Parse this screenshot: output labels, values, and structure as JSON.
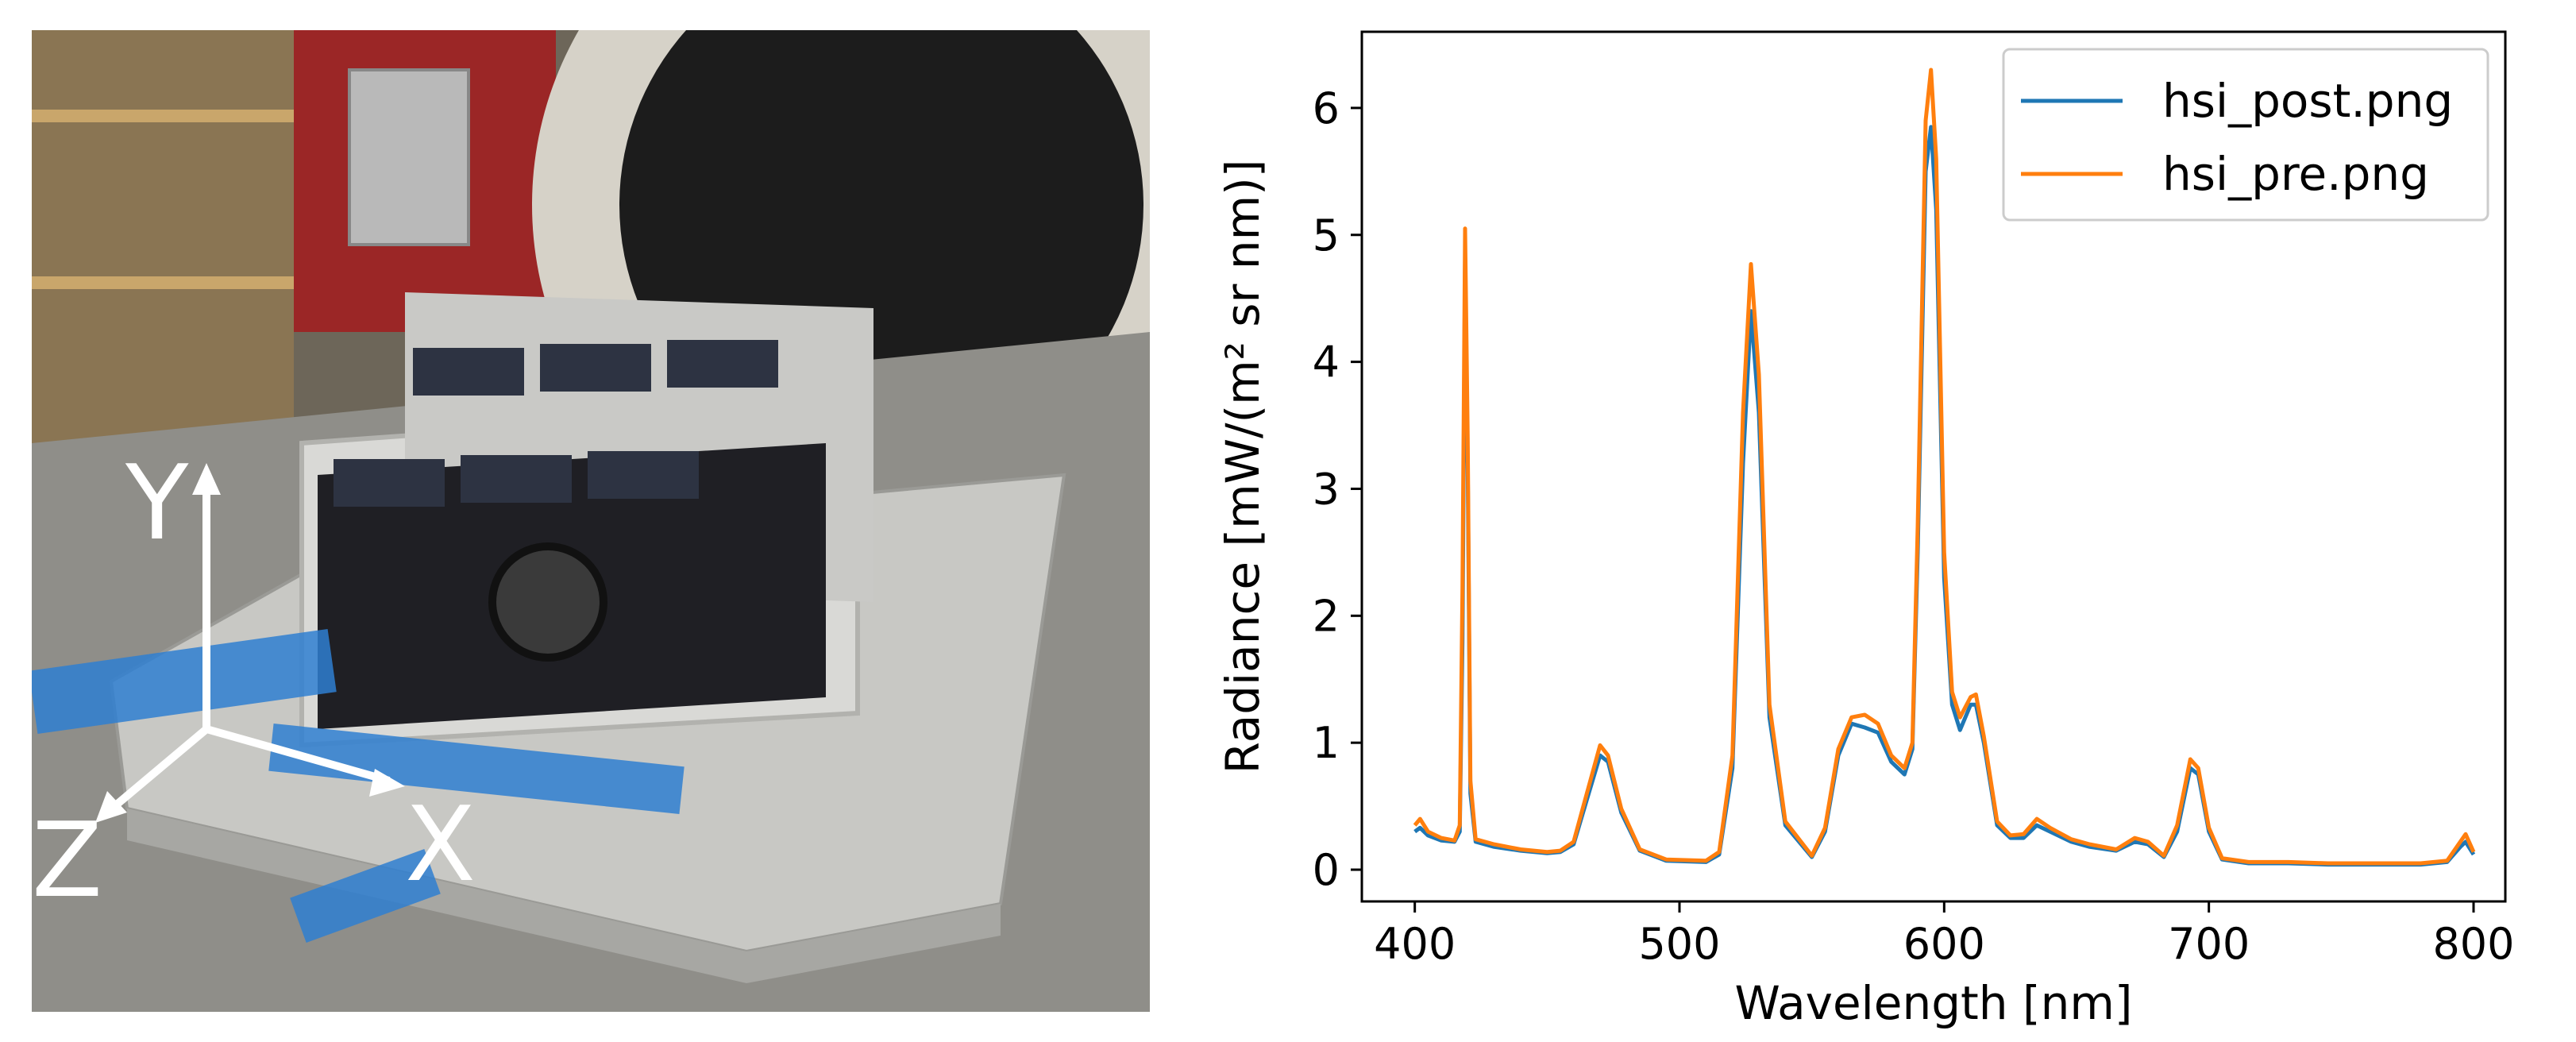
{
  "photo": {
    "description_icon": "cubesat-on-vibration-table-photo",
    "axis_labels": {
      "y": "Y",
      "z": "Z",
      "x": "X"
    }
  },
  "chart_data": {
    "type": "line",
    "title": "",
    "xlabel": "Wavelength [nm]",
    "ylabel": "Radiance [mW/(m² sr nm)]",
    "xlim": [
      380,
      812
    ],
    "ylim": [
      -0.25,
      6.6
    ],
    "xticks": [
      400,
      500,
      600,
      700,
      800
    ],
    "yticks": [
      0,
      1,
      2,
      3,
      4,
      5,
      6
    ],
    "grid": false,
    "legend_position": "top-right",
    "series": [
      {
        "name": "hsi_post.png",
        "color": "#1f77b4",
        "points": [
          [
            400,
            0.3
          ],
          [
            402,
            0.33
          ],
          [
            405,
            0.27
          ],
          [
            410,
            0.23
          ],
          [
            415,
            0.22
          ],
          [
            417,
            0.3
          ],
          [
            418,
            1.8
          ],
          [
            419,
            4.8
          ],
          [
            420,
            3.2
          ],
          [
            421,
            0.6
          ],
          [
            423,
            0.22
          ],
          [
            430,
            0.18
          ],
          [
            440,
            0.15
          ],
          [
            450,
            0.13
          ],
          [
            455,
            0.14
          ],
          [
            460,
            0.2
          ],
          [
            465,
            0.55
          ],
          [
            470,
            0.9
          ],
          [
            473,
            0.85
          ],
          [
            478,
            0.45
          ],
          [
            485,
            0.15
          ],
          [
            495,
            0.07
          ],
          [
            510,
            0.06
          ],
          [
            515,
            0.12
          ],
          [
            520,
            0.8
          ],
          [
            524,
            3.2
          ],
          [
            527,
            4.4
          ],
          [
            530,
            3.6
          ],
          [
            534,
            1.2
          ],
          [
            540,
            0.35
          ],
          [
            550,
            0.1
          ],
          [
            555,
            0.3
          ],
          [
            560,
            0.9
          ],
          [
            565,
            1.15
          ],
          [
            570,
            1.12
          ],
          [
            575,
            1.08
          ],
          [
            580,
            0.85
          ],
          [
            585,
            0.75
          ],
          [
            588,
            0.95
          ],
          [
            590,
            2.5
          ],
          [
            593,
            5.5
          ],
          [
            595,
            5.85
          ],
          [
            597,
            5.2
          ],
          [
            600,
            2.3
          ],
          [
            603,
            1.3
          ],
          [
            606,
            1.1
          ],
          [
            610,
            1.3
          ],
          [
            612,
            1.3
          ],
          [
            615,
            1.0
          ],
          [
            620,
            0.35
          ],
          [
            625,
            0.25
          ],
          [
            630,
            0.25
          ],
          [
            635,
            0.35
          ],
          [
            640,
            0.3
          ],
          [
            648,
            0.22
          ],
          [
            655,
            0.18
          ],
          [
            665,
            0.15
          ],
          [
            672,
            0.22
          ],
          [
            677,
            0.2
          ],
          [
            683,
            0.1
          ],
          [
            688,
            0.3
          ],
          [
            693,
            0.8
          ],
          [
            696,
            0.75
          ],
          [
            700,
            0.3
          ],
          [
            705,
            0.08
          ],
          [
            715,
            0.05
          ],
          [
            730,
            0.05
          ],
          [
            745,
            0.04
          ],
          [
            760,
            0.04
          ],
          [
            780,
            0.04
          ],
          [
            790,
            0.06
          ],
          [
            795,
            0.18
          ],
          [
            797,
            0.22
          ],
          [
            800,
            0.12
          ]
        ]
      },
      {
        "name": "hsi_pre.png",
        "color": "#ff7f0e",
        "points": [
          [
            400,
            0.35
          ],
          [
            402,
            0.4
          ],
          [
            405,
            0.3
          ],
          [
            410,
            0.25
          ],
          [
            415,
            0.23
          ],
          [
            417,
            0.35
          ],
          [
            418,
            2.2
          ],
          [
            419,
            5.05
          ],
          [
            420,
            3.4
          ],
          [
            421,
            0.7
          ],
          [
            423,
            0.24
          ],
          [
            430,
            0.2
          ],
          [
            440,
            0.16
          ],
          [
            450,
            0.14
          ],
          [
            455,
            0.15
          ],
          [
            460,
            0.22
          ],
          [
            465,
            0.6
          ],
          [
            470,
            0.98
          ],
          [
            473,
            0.9
          ],
          [
            478,
            0.48
          ],
          [
            485,
            0.16
          ],
          [
            495,
            0.08
          ],
          [
            510,
            0.07
          ],
          [
            515,
            0.14
          ],
          [
            520,
            0.9
          ],
          [
            524,
            3.6
          ],
          [
            527,
            4.77
          ],
          [
            530,
            3.9
          ],
          [
            534,
            1.3
          ],
          [
            540,
            0.38
          ],
          [
            550,
            0.11
          ],
          [
            555,
            0.33
          ],
          [
            560,
            0.95
          ],
          [
            565,
            1.2
          ],
          [
            570,
            1.22
          ],
          [
            575,
            1.15
          ],
          [
            580,
            0.9
          ],
          [
            585,
            0.8
          ],
          [
            588,
            1.0
          ],
          [
            590,
            2.7
          ],
          [
            593,
            5.9
          ],
          [
            595,
            6.3
          ],
          [
            597,
            5.6
          ],
          [
            600,
            2.5
          ],
          [
            603,
            1.4
          ],
          [
            606,
            1.2
          ],
          [
            610,
            1.36
          ],
          [
            612,
            1.38
          ],
          [
            615,
            1.05
          ],
          [
            620,
            0.38
          ],
          [
            625,
            0.27
          ],
          [
            630,
            0.28
          ],
          [
            635,
            0.4
          ],
          [
            640,
            0.33
          ],
          [
            648,
            0.24
          ],
          [
            655,
            0.2
          ],
          [
            665,
            0.16
          ],
          [
            672,
            0.25
          ],
          [
            677,
            0.22
          ],
          [
            683,
            0.11
          ],
          [
            688,
            0.35
          ],
          [
            693,
            0.87
          ],
          [
            696,
            0.8
          ],
          [
            700,
            0.33
          ],
          [
            705,
            0.09
          ],
          [
            715,
            0.06
          ],
          [
            730,
            0.06
          ],
          [
            745,
            0.05
          ],
          [
            760,
            0.05
          ],
          [
            780,
            0.05
          ],
          [
            790,
            0.07
          ],
          [
            795,
            0.22
          ],
          [
            797,
            0.28
          ],
          [
            800,
            0.14
          ]
        ]
      }
    ]
  }
}
